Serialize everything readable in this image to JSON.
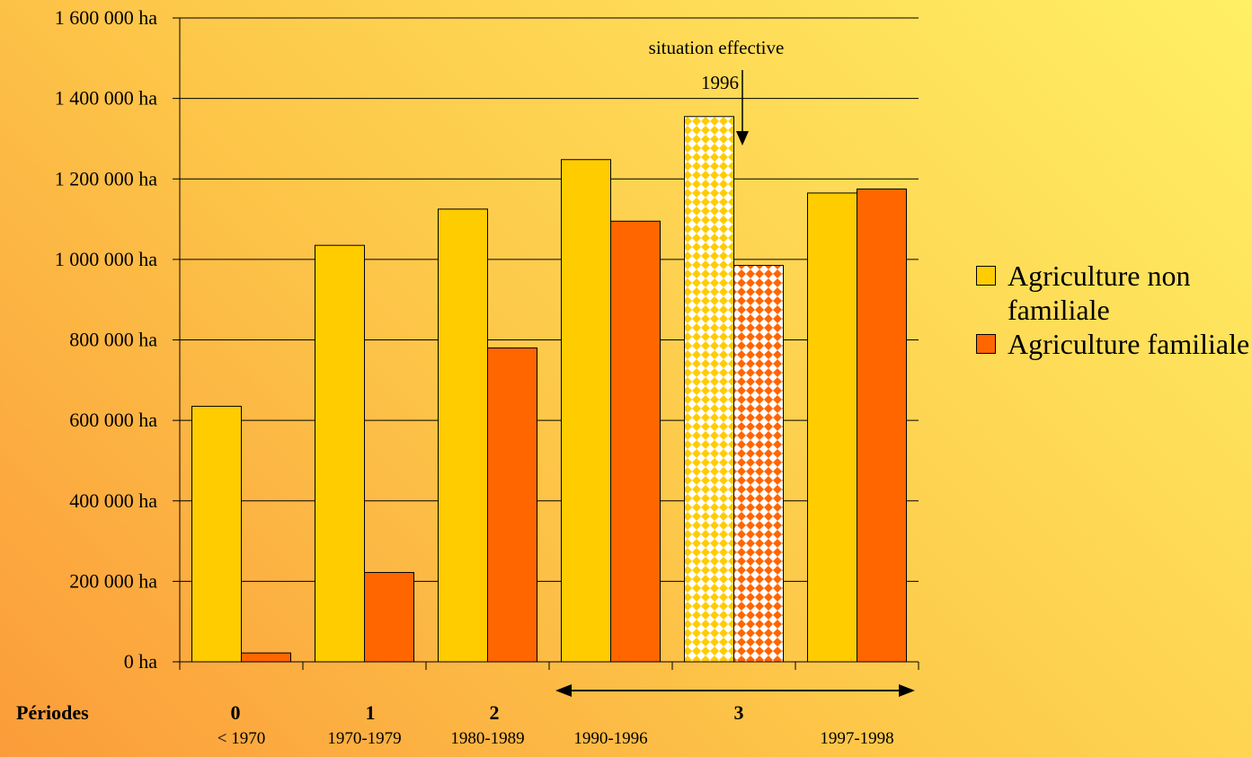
{
  "chart_data": {
    "type": "bar",
    "ylim": [
      0,
      1600000
    ],
    "y_ticks": [
      {
        "value": 0,
        "label": "0 ha"
      },
      {
        "value": 200000,
        "label": "200 000 ha"
      },
      {
        "value": 400000,
        "label": "400 000 ha"
      },
      {
        "value": 600000,
        "label": "600 000 ha"
      },
      {
        "value": 800000,
        "label": "800 000 ha"
      },
      {
        "value": 1000000,
        "label": "1 000 000 ha"
      },
      {
        "value": 1200000,
        "label": "1 200 000 ha"
      },
      {
        "value": 1400000,
        "label": "1 400 000 ha"
      },
      {
        "value": 1600000,
        "label": "1 600 000 ha"
      }
    ],
    "grid": true,
    "categories": [
      "< 1970",
      "1970-1979",
      "1980-1989",
      "1990-1996",
      "1996",
      "1997-1998"
    ],
    "category_labels": [
      "< 1970",
      "1970-1979",
      "1980-1989",
      "1990-1996",
      "",
      "1997-1998"
    ],
    "periods_label": "Périodes",
    "periods": [
      "0",
      "1",
      "2",
      "3"
    ],
    "series": [
      {
        "name": "Agriculture non familiale",
        "color": "#ffcc00",
        "values": [
          635000,
          1035000,
          1125000,
          1248000,
          1355000,
          1165000
        ]
      },
      {
        "name": "Agriculture familiale",
        "color": "#ff6600",
        "values": [
          22000,
          222000,
          780000,
          1095000,
          985000,
          1175000
        ]
      }
    ],
    "patterned_category": 4,
    "annotation": {
      "line1": "situation effective",
      "line2": "1996"
    },
    "legend_position": "right"
  }
}
